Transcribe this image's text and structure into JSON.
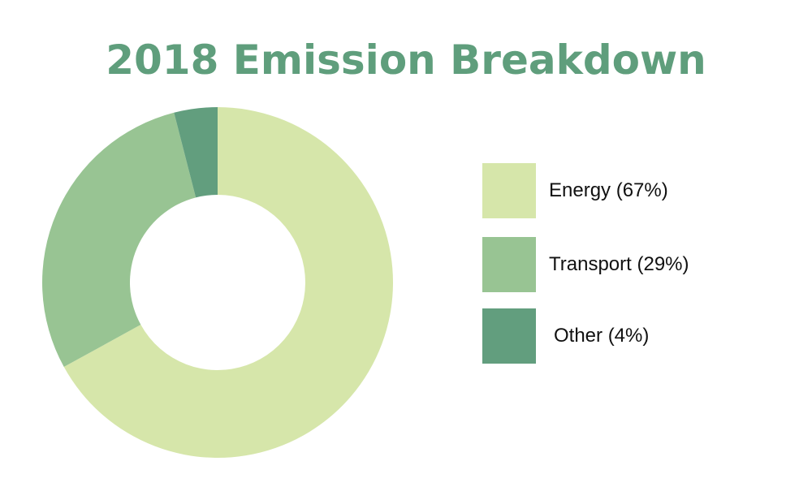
{
  "chart_data": {
    "type": "pie",
    "title": "2018 Emission Breakdown",
    "donut": true,
    "start": "12 o'clock, clockwise",
    "legend_position": "right",
    "slices": [
      {
        "label": "Energy (67%)",
        "value": 67,
        "color": "#d6e6aa"
      },
      {
        "label": "Transport (29%)",
        "value": 29,
        "color": "#98c493"
      },
      {
        "label": "Other (4%)",
        "value": 4,
        "color": "#629e7e"
      }
    ]
  }
}
